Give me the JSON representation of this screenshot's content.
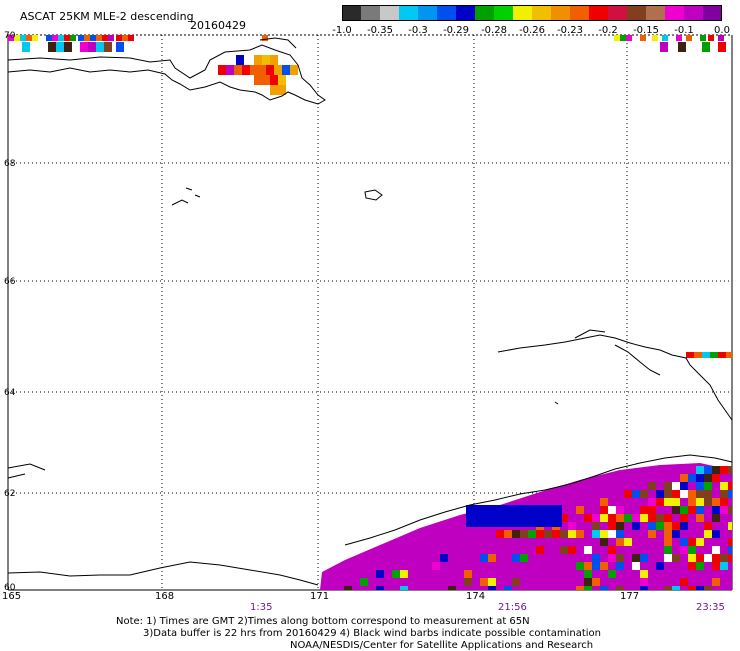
{
  "header": {
    "title": "ASCAT 25KM MLE-2 descending",
    "date": "20160429"
  },
  "colorbar": {
    "colors": [
      "#2a2a2a",
      "#7a7a7a",
      "#c8c8c8",
      "#00c8f0",
      "#0096f0",
      "#0050f0",
      "#0000c8",
      "#00a000",
      "#00d000",
      "#f0f000",
      "#f0c000",
      "#f09000",
      "#f06000",
      "#f00000",
      "#d01040",
      "#804020",
      "#b07050",
      "#f000d0",
      "#c000c0",
      "#8000a0"
    ],
    "tick_labels": [
      "-1.0",
      "-0.35",
      "-0.3",
      "-0.29",
      "-0.28",
      "-0.26",
      "-0.23",
      "-0.2",
      "-0.15",
      "-0.1",
      "0.0"
    ]
  },
  "map": {
    "lat_labels": [
      "70",
      "68",
      "66",
      "64",
      "62",
      "60"
    ],
    "lon_labels": [
      "165",
      "168",
      "171",
      "174",
      "177"
    ],
    "time_labels": [
      "1:35",
      "21:56",
      "23:35"
    ]
  },
  "footer": {
    "line1": "Note: 1) Times are GMT 2)Times along bottom correspond to measurement at 65N",
    "line2": "3)Data buffer is 22 hrs from 20160429 4) Black wind barbs indicate possible contamination",
    "line3": "NOAA/NESDIS/Center for Satellite Applications and Research"
  }
}
